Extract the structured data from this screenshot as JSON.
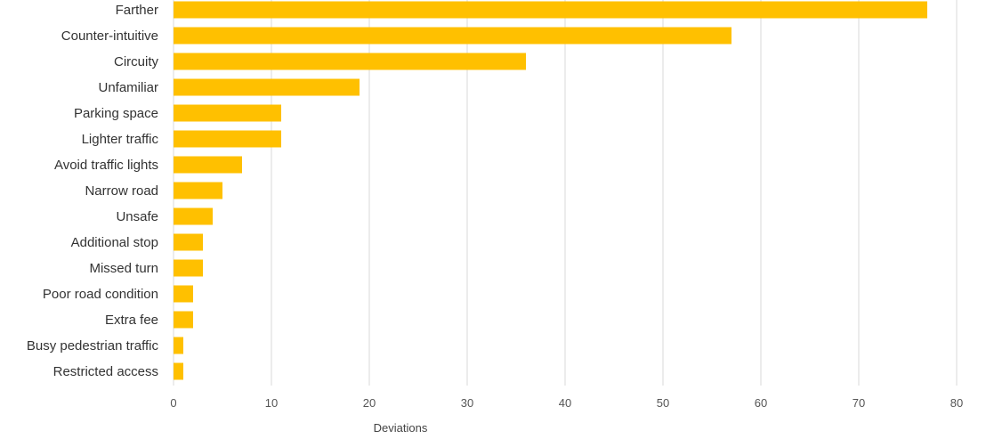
{
  "chart_data": {
    "type": "bar",
    "orientation": "horizontal",
    "title": "",
    "xlabel": "Deviations",
    "ylabel": "",
    "xlim": [
      0,
      80
    ],
    "x_ticks": [
      0,
      10,
      20,
      30,
      40,
      50,
      60,
      70,
      80
    ],
    "grid": "vertical",
    "legend": "none",
    "bar_color": "#FFC000",
    "categories": [
      "Farther",
      "Counter-intuitive",
      "Circuity",
      "Unfamiliar",
      "Parking space",
      "Lighter traffic",
      "Avoid traffic lights",
      "Narrow road",
      "Unsafe",
      "Additional stop",
      "Missed turn",
      "Poor road condition",
      "Extra fee",
      "Busy pedestrian traffic",
      "Restricted access"
    ],
    "values": [
      77,
      57,
      36,
      19,
      11,
      11,
      7,
      5,
      4,
      3,
      3,
      2,
      2,
      1,
      1
    ]
  }
}
